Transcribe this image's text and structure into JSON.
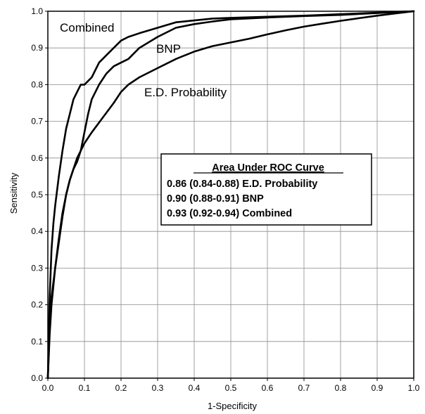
{
  "chart_data": {
    "type": "line",
    "title": "",
    "xlabel": "1-Specificity",
    "ylabel": "Sensitivity",
    "xlim": [
      0,
      1
    ],
    "ylim": [
      0,
      1
    ],
    "xticks": [
      "0.0",
      "0.1",
      "0.2",
      "0.3",
      "0.4",
      "0.5",
      "0.6",
      "0.7",
      "0.8",
      "0.9",
      "1.0"
    ],
    "yticks": [
      "0.0",
      "0.1",
      "0.2",
      "0.3",
      "0.4",
      "0.5",
      "0.6",
      "0.7",
      "0.8",
      "0.9",
      "1.0"
    ],
    "grid": true,
    "series": [
      {
        "name": "Combined",
        "x": [
          0,
          0.005,
          0.01,
          0.015,
          0.02,
          0.03,
          0.04,
          0.05,
          0.06,
          0.07,
          0.08,
          0.09,
          0.1,
          0.12,
          0.14,
          0.16,
          0.18,
          0.2,
          0.22,
          0.25,
          0.3,
          0.35,
          0.4,
          0.45,
          0.5,
          0.6,
          0.7,
          0.8,
          0.9,
          1.0
        ],
        "y": [
          0,
          0.22,
          0.35,
          0.42,
          0.47,
          0.55,
          0.62,
          0.68,
          0.72,
          0.76,
          0.78,
          0.8,
          0.8,
          0.82,
          0.86,
          0.88,
          0.9,
          0.92,
          0.93,
          0.94,
          0.955,
          0.97,
          0.975,
          0.98,
          0.982,
          0.985,
          0.988,
          0.992,
          0.996,
          1.0
        ]
      },
      {
        "name": "BNP",
        "x": [
          0,
          0.005,
          0.01,
          0.02,
          0.03,
          0.04,
          0.05,
          0.06,
          0.07,
          0.08,
          0.09,
          0.1,
          0.11,
          0.12,
          0.14,
          0.16,
          0.18,
          0.2,
          0.22,
          0.25,
          0.3,
          0.35,
          0.4,
          0.45,
          0.5,
          0.6,
          0.7,
          0.8,
          0.9,
          1.0
        ],
        "y": [
          0,
          0.12,
          0.2,
          0.3,
          0.38,
          0.45,
          0.5,
          0.54,
          0.57,
          0.59,
          0.62,
          0.67,
          0.72,
          0.76,
          0.8,
          0.83,
          0.85,
          0.86,
          0.87,
          0.9,
          0.93,
          0.955,
          0.965,
          0.972,
          0.978,
          0.983,
          0.987,
          0.99,
          0.995,
          1.0
        ]
      },
      {
        "name": "E.D. Probability",
        "x": [
          0,
          0.005,
          0.01,
          0.02,
          0.03,
          0.04,
          0.05,
          0.06,
          0.08,
          0.1,
          0.12,
          0.15,
          0.18,
          0.2,
          0.22,
          0.25,
          0.3,
          0.35,
          0.4,
          0.45,
          0.5,
          0.55,
          0.6,
          0.65,
          0.7,
          0.75,
          0.8,
          0.85,
          0.9,
          0.95,
          1.0
        ],
        "y": [
          0,
          0.16,
          0.22,
          0.3,
          0.37,
          0.44,
          0.5,
          0.54,
          0.6,
          0.64,
          0.67,
          0.71,
          0.75,
          0.78,
          0.8,
          0.82,
          0.845,
          0.87,
          0.89,
          0.905,
          0.915,
          0.925,
          0.937,
          0.948,
          0.958,
          0.966,
          0.974,
          0.981,
          0.988,
          0.994,
          1.0
        ]
      }
    ],
    "annotations": {
      "curve_labels": [
        {
          "series": "Combined",
          "text": "Combined"
        },
        {
          "series": "BNP",
          "text": "BNP"
        },
        {
          "series": "E.D. Probability",
          "text": "E.D. Probability"
        }
      ],
      "auc_box": {
        "title": "Area Under ROC Curve",
        "lines": [
          "0.86 (0.84-0.88) E.D. Probability",
          "0.90 (0.88-0.91) BNP",
          "0.93 (0.92-0.94) Combined"
        ]
      }
    },
    "colors": {
      "line": "#000000",
      "grid": "#8c8c8c",
      "background": "#ffffff"
    }
  }
}
